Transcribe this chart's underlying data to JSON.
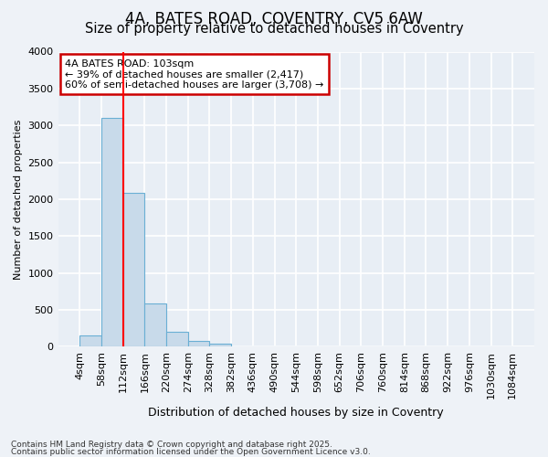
{
  "title1": "4A, BATES ROAD, COVENTRY, CV5 6AW",
  "title2": "Size of property relative to detached houses in Coventry",
  "xlabel": "Distribution of detached houses by size in Coventry",
  "ylabel": "Number of detached properties",
  "bar_bins": [
    4,
    58,
    112,
    166,
    220,
    274,
    328,
    382,
    436,
    490,
    544,
    598,
    652,
    706,
    760,
    814,
    868,
    922,
    976,
    1030,
    1084
  ],
  "bar_heights": [
    155,
    3100,
    2080,
    580,
    200,
    80,
    45,
    0,
    0,
    0,
    0,
    0,
    0,
    0,
    0,
    0,
    0,
    0,
    0,
    0
  ],
  "bar_color": "#c8daea",
  "bar_edgecolor": "#6aafd4",
  "bar_linewidth": 0.8,
  "red_line_x": 112,
  "ylim": [
    0,
    4000
  ],
  "yticks": [
    0,
    500,
    1000,
    1500,
    2000,
    2500,
    3000,
    3500,
    4000
  ],
  "annotation_title": "4A BATES ROAD: 103sqm",
  "annotation_line1": "← 39% of detached houses are smaller (2,417)",
  "annotation_line2": "60% of semi-detached houses are larger (3,708) →",
  "annotation_box_color": "#ffffff",
  "annotation_box_edgecolor": "#cc0000",
  "footer1": "Contains HM Land Registry data © Crown copyright and database right 2025.",
  "footer2": "Contains public sector information licensed under the Open Government Licence v3.0.",
  "background_color": "#eef2f7",
  "plot_bg_color": "#e8eef5",
  "grid_color": "#ffffff",
  "title1_fontsize": 12,
  "title2_fontsize": 10.5
}
